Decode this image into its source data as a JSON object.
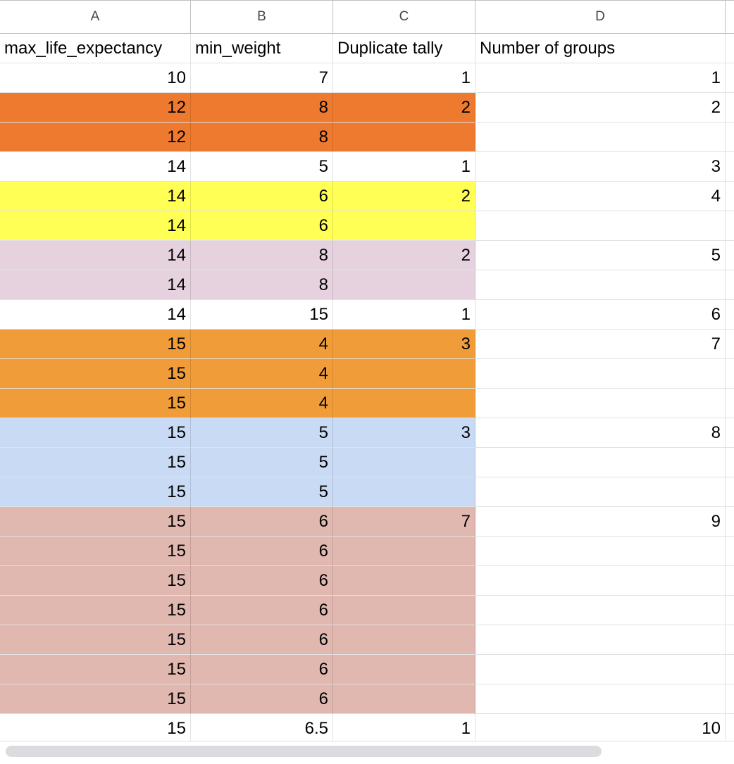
{
  "columns": [
    "A",
    "B",
    "C",
    "D"
  ],
  "header_row": [
    "max_life_expectancy",
    "min_weight",
    "Duplicate tally",
    "Number of groups"
  ],
  "colors": {
    "white": "#ffffff",
    "dark_orange": "#ed7a2f",
    "yellow": "#ffff55",
    "light_purple": "#e5d2de",
    "light_orange": "#f09c39",
    "light_blue": "#c9daf5",
    "light_red": "#e0b8b0"
  },
  "rows": [
    {
      "a": "10",
      "b": "7",
      "c": "1",
      "d": "1",
      "color": "white"
    },
    {
      "a": "12",
      "b": "8",
      "c": "2",
      "d": "2",
      "color": "dark_orange"
    },
    {
      "a": "12",
      "b": "8",
      "c": "",
      "d": "",
      "color": "dark_orange"
    },
    {
      "a": "14",
      "b": "5",
      "c": "1",
      "d": "3",
      "color": "white"
    },
    {
      "a": "14",
      "b": "6",
      "c": "2",
      "d": "4",
      "color": "yellow"
    },
    {
      "a": "14",
      "b": "6",
      "c": "",
      "d": "",
      "color": "yellow"
    },
    {
      "a": "14",
      "b": "8",
      "c": "2",
      "d": "5",
      "color": "light_purple"
    },
    {
      "a": "14",
      "b": "8",
      "c": "",
      "d": "",
      "color": "light_purple"
    },
    {
      "a": "14",
      "b": "15",
      "c": "1",
      "d": "6",
      "color": "white"
    },
    {
      "a": "15",
      "b": "4",
      "c": "3",
      "d": "7",
      "color": "light_orange"
    },
    {
      "a": "15",
      "b": "4",
      "c": "",
      "d": "",
      "color": "light_orange"
    },
    {
      "a": "15",
      "b": "4",
      "c": "",
      "d": "",
      "color": "light_orange"
    },
    {
      "a": "15",
      "b": "5",
      "c": "3",
      "d": "8",
      "color": "light_blue"
    },
    {
      "a": "15",
      "b": "5",
      "c": "",
      "d": "",
      "color": "light_blue"
    },
    {
      "a": "15",
      "b": "5",
      "c": "",
      "d": "",
      "color": "light_blue"
    },
    {
      "a": "15",
      "b": "6",
      "c": "7",
      "d": "9",
      "color": "light_red"
    },
    {
      "a": "15",
      "b": "6",
      "c": "",
      "d": "",
      "color": "light_red"
    },
    {
      "a": "15",
      "b": "6",
      "c": "",
      "d": "",
      "color": "light_red"
    },
    {
      "a": "15",
      "b": "6",
      "c": "",
      "d": "",
      "color": "light_red"
    },
    {
      "a": "15",
      "b": "6",
      "c": "",
      "d": "",
      "color": "light_red"
    },
    {
      "a": "15",
      "b": "6",
      "c": "",
      "d": "",
      "color": "light_red"
    },
    {
      "a": "15",
      "b": "6",
      "c": "",
      "d": "",
      "color": "light_red"
    },
    {
      "a": "15",
      "b": "6.5",
      "c": "1",
      "d": "10",
      "color": "white"
    }
  ]
}
